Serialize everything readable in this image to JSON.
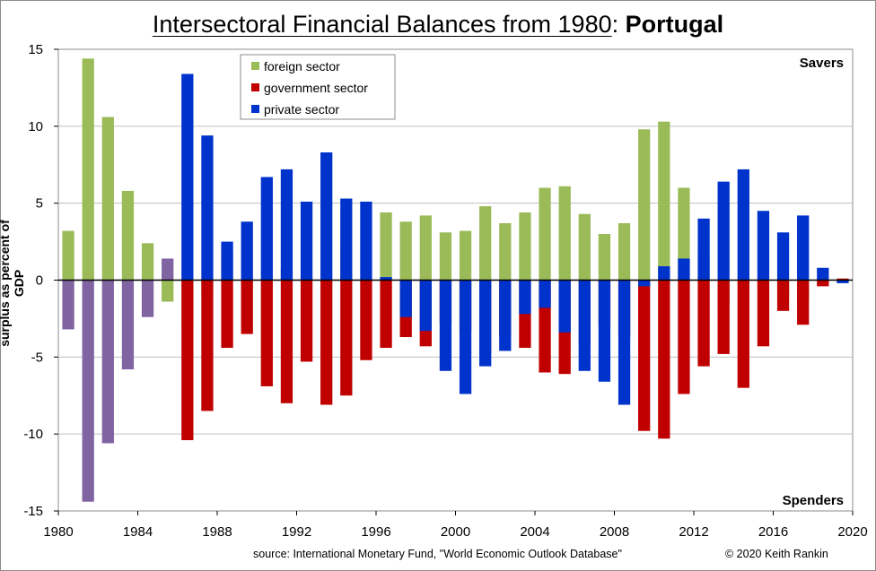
{
  "page": {
    "title_main": "Intersectoral Financial Balances from 1980",
    "title_sep": ":",
    "title_country": "Portugal",
    "source": "source:  International Monetary Fund, \"World Economic Outlook Database\"",
    "copyright": "© 2020  Keith Rankin"
  },
  "chart_data": {
    "type": "bar",
    "stacked": true,
    "title": "Intersectoral Financial Balances from 1980: Portugal",
    "ylabel": "surplus as percent of GDP",
    "xlabel": "",
    "ylim": [
      -15,
      15
    ],
    "yticks": [
      15,
      10,
      5,
      0,
      -5,
      -10,
      -15
    ],
    "xlim": [
      1980,
      2020
    ],
    "xticks": [
      1980,
      1984,
      1988,
      1992,
      1996,
      2000,
      2004,
      2008,
      2012,
      2016,
      2020
    ],
    "grid": true,
    "legend_position": "top-center",
    "annotations": {
      "top_right": "Savers",
      "bottom_right": "Spenders"
    },
    "years": [
      1980,
      1981,
      1982,
      1983,
      1984,
      1985,
      1986,
      1987,
      1988,
      1989,
      1990,
      1991,
      1992,
      1993,
      1994,
      1995,
      1996,
      1997,
      1998,
      1999,
      2000,
      2001,
      2002,
      2003,
      2004,
      2005,
      2006,
      2007,
      2008,
      2009,
      2010,
      2011,
      2012,
      2013,
      2014,
      2015,
      2016,
      2017,
      2018,
      2019
    ],
    "combined_series": {
      "years": [
        1980,
        1981,
        1982,
        1983,
        1984,
        1985
      ],
      "values": [
        -3.2,
        -14.4,
        -10.6,
        -5.8,
        -2.4,
        1.4
      ],
      "color": "#8064a2"
    },
    "series": [
      {
        "name": "foreign sector",
        "color": "#9bbb59",
        "values": [
          3.2,
          14.4,
          10.6,
          5.8,
          2.4,
          -1.4,
          -3.0,
          -0.9,
          1.9,
          -0.3,
          0.2,
          0.8,
          0.2,
          -0.2,
          2.2,
          0.1,
          4.4,
          3.8,
          4.2,
          3.1,
          3.2,
          4.8,
          3.7,
          4.4,
          6.0,
          6.1,
          4.3,
          3.0,
          3.7,
          9.8,
          10.3,
          6.0,
          1.6,
          -1.6,
          -0.3,
          -0.3,
          -1.1,
          -1.3,
          -0.3,
          0.1
        ]
      },
      {
        "name": "government sector",
        "color": "#c00000",
        "values": [
          0,
          0,
          0,
          0,
          0,
          0,
          -10.4,
          -8.5,
          -4.4,
          -3.5,
          -6.9,
          -8.0,
          -5.3,
          -8.1,
          -7.5,
          -5.2,
          -4.4,
          -3.7,
          -4.3,
          -2.8,
          -3.3,
          -4.8,
          -3.7,
          -4.4,
          -6.0,
          -6.1,
          -4.2,
          -3.0,
          -3.7,
          -9.8,
          -10.3,
          -7.4,
          -5.6,
          -4.8,
          -7.0,
          -4.3,
          -2.0,
          -2.9,
          -0.4,
          0.1
        ]
      },
      {
        "name": "private sector",
        "color": "#0033cc",
        "values": [
          0,
          0,
          0,
          0,
          0,
          0,
          13.4,
          9.4,
          2.5,
          3.8,
          6.7,
          7.2,
          5.1,
          8.3,
          5.3,
          5.1,
          0.2,
          -2.4,
          -3.3,
          -5.9,
          -7.4,
          -5.6,
          -4.6,
          -2.2,
          -1.8,
          -3.4,
          -5.9,
          -6.6,
          -8.1,
          -0.4,
          0.9,
          1.4,
          4.0,
          6.4,
          7.2,
          4.5,
          3.1,
          4.2,
          0.8,
          -0.2
        ]
      }
    ]
  }
}
